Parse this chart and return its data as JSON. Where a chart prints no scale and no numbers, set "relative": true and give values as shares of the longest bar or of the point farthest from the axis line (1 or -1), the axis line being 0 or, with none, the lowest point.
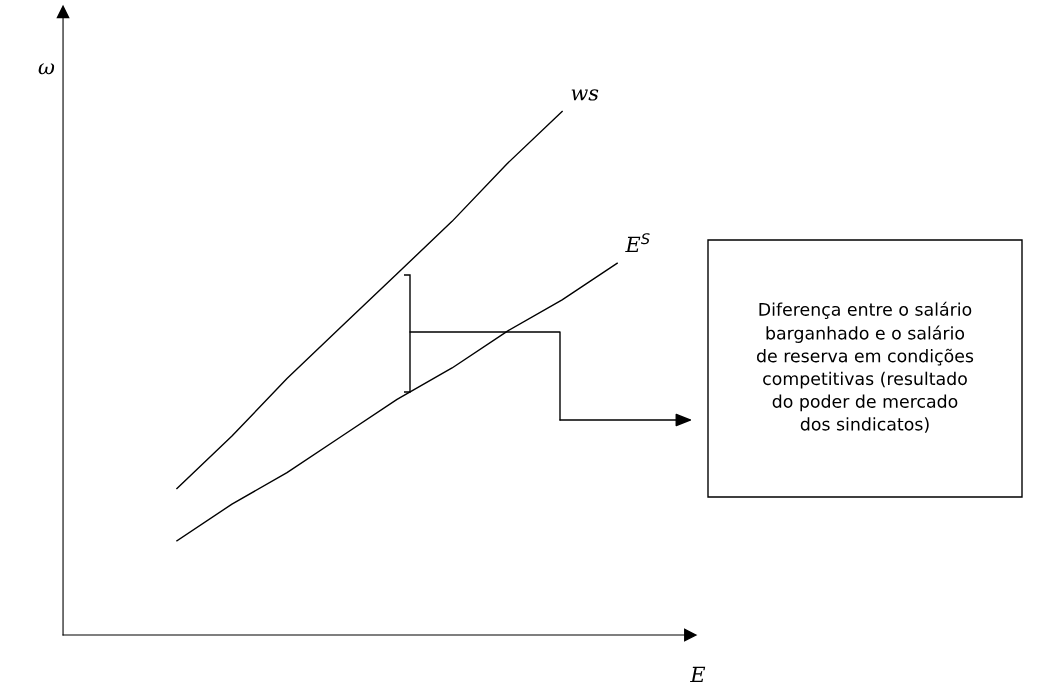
{
  "chart_data": {
    "type": "line",
    "relative": true,
    "xlabel": "E",
    "ylabel": "ω",
    "marker": "none",
    "line_style": "solid",
    "categories": [
      null,
      null,
      null,
      null,
      null,
      null,
      null,
      null,
      null
    ],
    "series": [
      {
        "name": "ws",
        "color": "#000000",
        "values": [
          0.28,
          0.38,
          0.49,
          0.59,
          0.69,
          0.79,
          0.9,
          1.0,
          null
        ]
      },
      {
        "name": "E$^{S}$",
        "color": "#000000",
        "values": [
          0.18,
          0.25,
          0.31,
          0.38,
          0.45,
          0.51,
          0.58,
          0.64,
          0.71
        ]
      }
    ],
    "annotations": [
      "Diferença entre o salário\nbarganhado e o salário\nde reserva em condições\ncompetitivas (resultado\ndo poder de mercado\ndos sindicatos)"
    ]
  }
}
